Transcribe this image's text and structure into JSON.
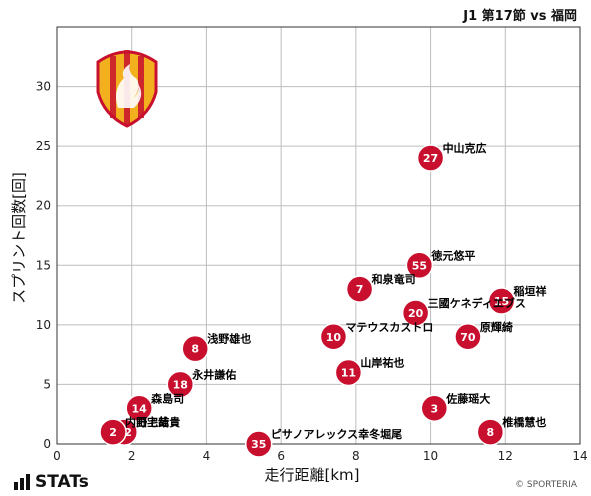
{
  "header": {
    "title": "J1 第17節 vs 福岡"
  },
  "footer": {
    "logo_text": "STATs",
    "copyright": "© SPORTERIA"
  },
  "colors": {
    "marker": "#c8102e",
    "marker_stroke": "#ffffff",
    "grid": "#bdbdbd",
    "axis": "#333333"
  },
  "chart_data": {
    "type": "scatter",
    "xlabel": "走行距離[km]",
    "ylabel": "スプリント回数[回]",
    "xlim": [
      0,
      14
    ],
    "ylim": [
      0,
      35
    ],
    "xticks": [
      0,
      2,
      4,
      6,
      8,
      10,
      12,
      14
    ],
    "yticks": [
      0,
      5,
      10,
      15,
      20,
      25,
      30
    ],
    "grid": true,
    "points": [
      {
        "number": "27",
        "name": "中山克広",
        "x": 10.0,
        "y": 24
      },
      {
        "number": "55",
        "name": "徳元悠平",
        "x": 9.7,
        "y": 15
      },
      {
        "number": "7",
        "name": "和泉竜司",
        "x": 8.1,
        "y": 13
      },
      {
        "number": "15",
        "name": "稲垣祥",
        "x": 11.9,
        "y": 12
      },
      {
        "number": "20",
        "name": "三國ケネディエブス",
        "x": 9.6,
        "y": 11
      },
      {
        "number": "10",
        "name": "マテウスカストロ",
        "x": 7.4,
        "y": 9
      },
      {
        "number": "70",
        "name": "原輝綺",
        "x": 11.0,
        "y": 9
      },
      {
        "number": "8",
        "name": "浅野雄也",
        "x": 3.7,
        "y": 8
      },
      {
        "number": "11",
        "name": "山岸祐也",
        "x": 7.8,
        "y": 6
      },
      {
        "number": "18",
        "name": "永井謙佑",
        "x": 3.3,
        "y": 5
      },
      {
        "number": "14",
        "name": "森島司",
        "x": 2.2,
        "y": 3
      },
      {
        "number": "3",
        "name": "佐藤瑶大",
        "x": 10.1,
        "y": 3
      },
      {
        "number": "72",
        "name": "野上結貴",
        "x": 1.8,
        "y": 1
      },
      {
        "number": "2",
        "name": "内田宅哉",
        "x": 1.5,
        "y": 1
      },
      {
        "number": "8",
        "name": "椎橋慧也",
        "x": 11.6,
        "y": 1
      },
      {
        "number": "35",
        "name": "ピサノアレックス幸冬堀尾",
        "x": 5.4,
        "y": 0
      }
    ]
  }
}
